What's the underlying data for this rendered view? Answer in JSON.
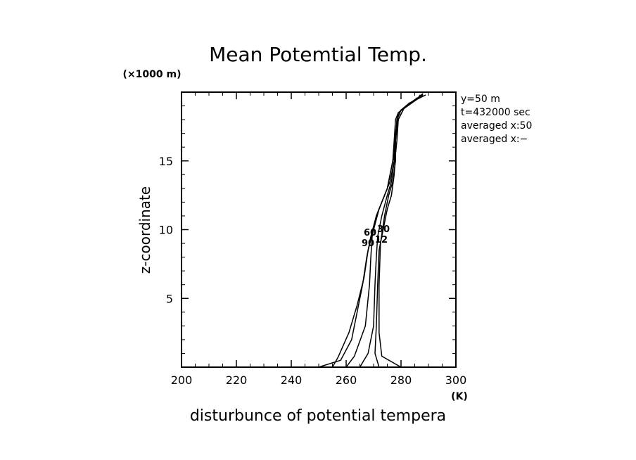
{
  "chart_data": {
    "type": "line",
    "title": "Mean Potemtial Temp.",
    "xlabel": "disturbunce of potential tempera",
    "ylabel": "z-coordinate",
    "xunit": "(K)",
    "yunit": "(×1000 m)",
    "xlim": [
      200,
      300
    ],
    "ylim": [
      0,
      20
    ],
    "xticks": [
      200,
      220,
      240,
      260,
      280,
      300
    ],
    "xtick_labels": [
      "200",
      "220",
      "240",
      "260",
      "280",
      "300"
    ],
    "yticks": [
      5,
      10,
      15
    ],
    "ytick_labels": [
      "5",
      "10",
      "15"
    ],
    "grid": false,
    "annotations": [
      "y=50  m",
      "t=432000  sec",
      "averaged   x:50",
      "averaged   x:−"
    ],
    "series": [
      {
        "x": [
          250,
          258,
          262,
          264,
          266,
          267.5,
          269,
          271,
          273,
          275,
          277,
          277.5,
          278,
          279,
          282,
          286,
          289
        ],
        "y": [
          0,
          0.5,
          2,
          4,
          6,
          8,
          9.5,
          11,
          12,
          13,
          15,
          16.5,
          18,
          18.5,
          19,
          19.5,
          19.8
        ]
      },
      {
        "x": [
          255,
          257,
          261,
          264,
          266.5,
          268,
          270,
          272,
          274,
          276,
          277.5,
          278,
          278.5,
          280,
          283,
          287,
          288
        ],
        "y": [
          0,
          0.7,
          2.5,
          4.5,
          6.5,
          8.5,
          10,
          11.5,
          12.5,
          13.5,
          15,
          16.5,
          18,
          18.7,
          19.2,
          19.6,
          19.9
        ]
      },
      {
        "x": [
          260,
          263,
          267,
          268.5,
          269,
          269.5,
          271,
          273,
          275,
          276,
          277.5,
          278,
          279,
          282,
          286
        ],
        "y": [
          0,
          0.8,
          3,
          6,
          8,
          9.5,
          11,
          12,
          13,
          14,
          15.5,
          17,
          18.5,
          19,
          19.6
        ]
      },
      {
        "x": [
          265,
          268,
          270,
          270.5,
          271,
          271.5,
          273,
          275,
          276.5,
          277.5,
          278,
          278.5,
          280,
          284,
          288
        ],
        "y": [
          0,
          1,
          3,
          6,
          8,
          9.5,
          11,
          12.5,
          13.5,
          15,
          16.5,
          18,
          18.7,
          19.3,
          19.8
        ]
      },
      {
        "x": [
          272,
          270.5,
          271,
          271.5,
          272,
          273.5,
          275,
          276.5,
          277.5,
          278,
          278.5,
          279,
          281,
          285,
          288
        ],
        "y": [
          0,
          1,
          3,
          6,
          8.5,
          10,
          11.5,
          12.5,
          14,
          15.5,
          16.5,
          18,
          18.8,
          19.4,
          19.9
        ]
      },
      {
        "x": [
          280,
          273,
          272,
          272,
          272.5,
          274,
          275.5,
          277,
          278,
          278,
          279,
          281,
          286,
          287
        ],
        "y": [
          0,
          0.8,
          2.5,
          6,
          9,
          11,
          12.5,
          13.5,
          15,
          16.5,
          18,
          18.8,
          19.5,
          19.8
        ]
      }
    ]
  }
}
